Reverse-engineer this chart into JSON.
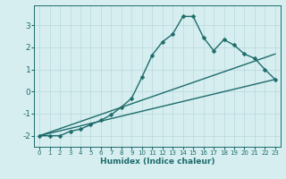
{
  "xlabel": "Humidex (Indice chaleur)",
  "ylabel": "",
  "xlim": [
    -0.5,
    23.5
  ],
  "ylim": [
    -2.5,
    3.9
  ],
  "background_color": "#d6eef0",
  "grid_color": "#b8d8dc",
  "line_color": "#1e6b6b",
  "series": [
    {
      "x": [
        0,
        1,
        2,
        3,
        4,
        5,
        6,
        7,
        8,
        9,
        10,
        11,
        12,
        13,
        14,
        15,
        16,
        17,
        18,
        19,
        20,
        21,
        22,
        23
      ],
      "y": [
        -2.0,
        -2.0,
        -2.0,
        -1.8,
        -1.7,
        -1.5,
        -1.3,
        -1.05,
        -0.7,
        -0.3,
        0.65,
        1.65,
        2.25,
        2.6,
        3.4,
        3.4,
        2.45,
        1.85,
        2.35,
        2.1,
        1.7,
        1.5,
        1.0,
        0.55
      ],
      "marker": "D",
      "markersize": 2.5,
      "linewidth": 1.0
    },
    {
      "x": [
        0,
        23
      ],
      "y": [
        -2.0,
        1.7
      ],
      "marker": null,
      "linewidth": 1.0
    },
    {
      "x": [
        0,
        23
      ],
      "y": [
        -2.0,
        0.55
      ],
      "marker": null,
      "linewidth": 1.0
    }
  ],
  "yticks": [
    -2,
    -1,
    0,
    1,
    2,
    3
  ],
  "xticks": [
    0,
    1,
    2,
    3,
    4,
    5,
    6,
    7,
    8,
    9,
    10,
    11,
    12,
    13,
    14,
    15,
    16,
    17,
    18,
    19,
    20,
    21,
    22,
    23
  ]
}
